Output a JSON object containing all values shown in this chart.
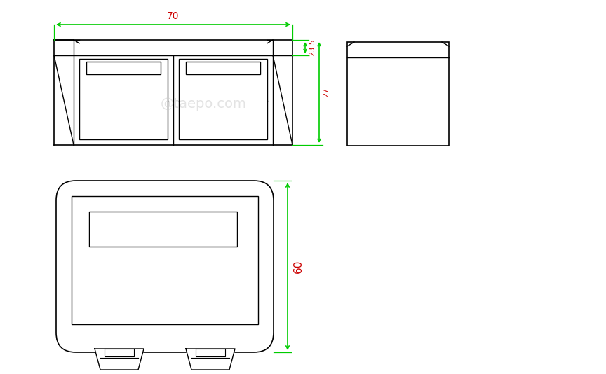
{
  "bg_color": "#ffffff",
  "line_color": "#000000",
  "dim_color_green": "#00cc00",
  "dim_color_red": "#cc0000",
  "watermark_color": "#cccccc",
  "watermark_text": "@taepo.com",
  "dim_70_label": "70",
  "dim_235_label": "23.5",
  "dim_27_label": "27",
  "dim_60_label": "60",
  "figsize": [
    8.64,
    5.34
  ],
  "dpi": 100
}
